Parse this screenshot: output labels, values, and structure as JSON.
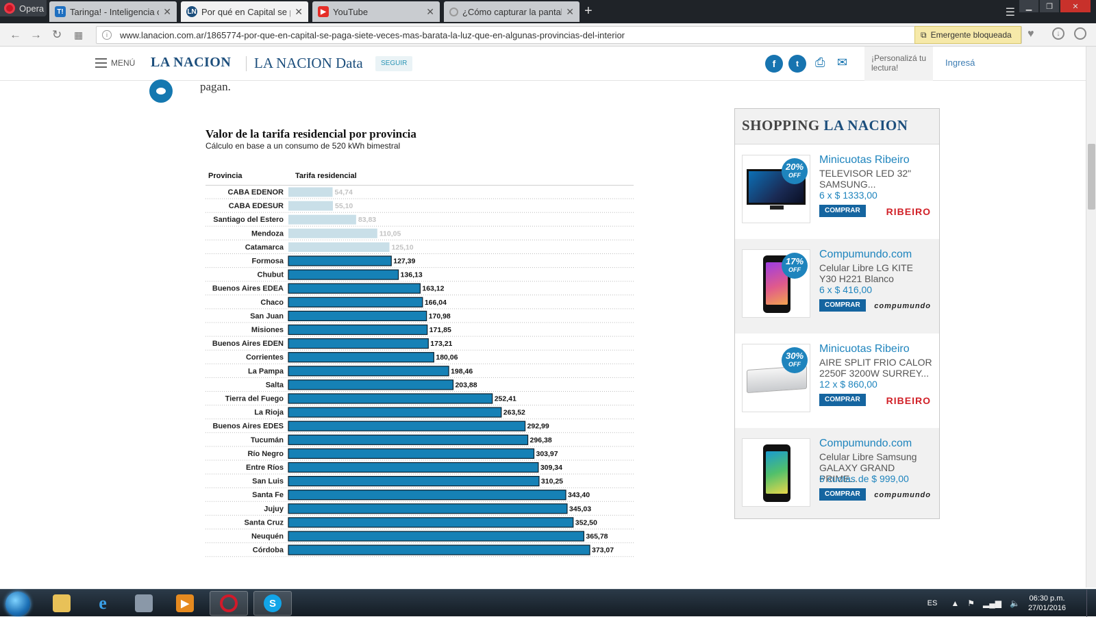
{
  "browser": {
    "menu_label": "Opera",
    "tabs": [
      {
        "title": "Taringa! - Inteligencia co",
        "icon": "T!",
        "icon_color": "#1e6fc0",
        "active": false
      },
      {
        "title": "Por qué en Capital se pag",
        "icon": "LN",
        "icon_color": "#1c4e7c",
        "active": true
      },
      {
        "title": "YouTube",
        "icon": "▶",
        "icon_color": "#e52d27",
        "active": false
      },
      {
        "title": "¿Cómo capturar la pantall",
        "icon": "",
        "icon_color": "#999999",
        "active": false
      }
    ],
    "url": "www.lanacion.com.ar/1865774-por-que-en-capital-se-paga-siete-veces-mas-barata-la-luz-que-en-algunas-provincias-del-interior",
    "popup_blocked_label": "Emergente bloqueada"
  },
  "site_header": {
    "menu_label": "MENÚ",
    "logo": "LA NACION",
    "section": "LA NACION Data",
    "follow_label": "SEGUIR",
    "personaliza_label": "¡Personalizá tu lectura!",
    "login_label": "Ingresá"
  },
  "article": {
    "tail_text": "pagan."
  },
  "chart_data": {
    "type": "bar",
    "orientation": "horizontal",
    "title": "Valor de la tarifa residencial por provincia",
    "subtitle": "Cálculo en base a un consumo de 520 kWh bimestral",
    "column_headers": [
      "Provincia",
      "Tarifa residencial"
    ],
    "categories": [
      "CABA EDENOR",
      "CABA EDESUR",
      "Santiago del Estero",
      "Mendoza",
      "Catamarca",
      "Formosa",
      "Chubut",
      "Buenos Aires EDEA",
      "Chaco",
      "San Juan",
      "Misiones",
      "Buenos Aires EDEN",
      "Corrientes",
      "La Pampa",
      "Salta",
      "Tierra del Fuego",
      "La Rioja",
      "Buenos Aires EDES",
      "Tucumán",
      "Río Negro",
      "Entre Ríos",
      "San Luis",
      "Santa Fe",
      "Jujuy",
      "Santa Cruz",
      "Neuquén",
      "Córdoba"
    ],
    "values": [
      54.74,
      55.1,
      83.83,
      110.05,
      125.1,
      127.39,
      136.13,
      163.12,
      166.04,
      170.98,
      171.85,
      173.21,
      180.06,
      198.46,
      203.88,
      252.41,
      263.52,
      292.99,
      296.38,
      303.97,
      309.34,
      310.25,
      343.4,
      345.03,
      352.5,
      365.78,
      373.07
    ],
    "value_labels": [
      "54,74",
      "55,10",
      "83,83",
      "110,05",
      "125,10",
      "127,39",
      "136,13",
      "163,12",
      "166,04",
      "170,98",
      "171,85",
      "173,21",
      "180,06",
      "198,46",
      "203,88",
      "252,41",
      "263,52",
      "292,99",
      "296,38",
      "303,97",
      "309,34",
      "310,25",
      "343,40",
      "345,03",
      "352,50",
      "365,78",
      "373,07"
    ],
    "highlighted_count_light": 5,
    "colors": {
      "dark_bar": "#1681b6",
      "light_bar": "#c9dfe8",
      "light_label": "#c2c2c2"
    }
  },
  "shopping": {
    "header_prefix": "SHOPPING",
    "header_brand": "LA NACION",
    "products": [
      {
        "store": "Minicuotas Ribeiro",
        "desc": "TELEVISOR LED 32\" SAMSUNG...",
        "price": "6 x $ 1333,00",
        "buy": "COMPRAR",
        "discount": "20%",
        "off": "OFF",
        "logo": "RIBEIRO",
        "picture": "tv"
      },
      {
        "store": "Compumundo.com",
        "desc": "Celular Libre LG KITE Y30 H221 Blanco",
        "price": "6 x $ 416,00",
        "buy": "COMPRAR",
        "discount": "17%",
        "off": "OFF",
        "logo": "compumundo",
        "picture": "phone"
      },
      {
        "store": "Minicuotas Ribeiro",
        "desc": "AIRE SPLIT FRIO CALOR 2250F 3200W SURREY...",
        "price": "12 x $ 860,00",
        "buy": "COMPRAR",
        "discount": "30%",
        "off": "OFF",
        "logo": "RIBEIRO",
        "picture": "ac"
      },
      {
        "store": "Compumundo.com",
        "desc": "Celular Libre Samsung GALAXY GRAND PRIME...",
        "price": "6 cuotas de $ 999,00",
        "buy": "COMPRAR",
        "discount": "",
        "off": "",
        "logo": "compumundo",
        "picture": "phone2"
      }
    ]
  },
  "taskbar": {
    "lang": "ES",
    "time": "06:30 p.m.",
    "date": "27/01/2016"
  }
}
